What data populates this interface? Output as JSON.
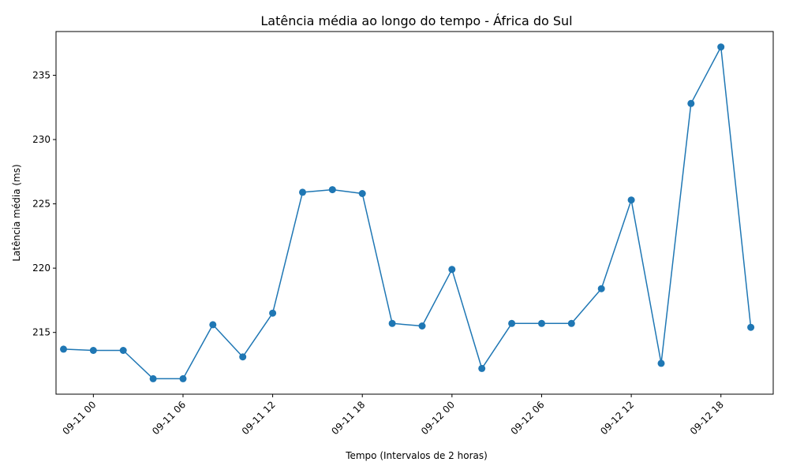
{
  "chart_data": {
    "type": "line",
    "title": "Latência média ao longo do tempo - África do Sul",
    "xlabel": "Tempo (Intervalos de 2 horas)",
    "ylabel": "Latência média (ms)",
    "x_ticks": [
      "09-11 00",
      "09-11 06",
      "09-11 12",
      "09-11 18",
      "09-12 00",
      "09-12 06",
      "09-12 12",
      "09-12 18"
    ],
    "y_ticks": [
      215,
      220,
      225,
      230,
      235
    ],
    "xlim": [
      "2024-09-10 21:30",
      "2024-09-12 21:30"
    ],
    "ylim": [
      210.2,
      238.4
    ],
    "grid": false,
    "series_color": "#1f77b4",
    "x": [
      "2024-09-10 22:00",
      "2024-09-11 00:00",
      "2024-09-11 02:00",
      "2024-09-11 04:00",
      "2024-09-11 06:00",
      "2024-09-11 08:00",
      "2024-09-11 10:00",
      "2024-09-11 12:00",
      "2024-09-11 14:00",
      "2024-09-11 16:00",
      "2024-09-11 18:00",
      "2024-09-11 20:00",
      "2024-09-11 22:00",
      "2024-09-12 00:00",
      "2024-09-12 02:00",
      "2024-09-12 04:00",
      "2024-09-12 06:00",
      "2024-09-12 08:00",
      "2024-09-12 10:00",
      "2024-09-12 12:00",
      "2024-09-12 14:00",
      "2024-09-12 16:00",
      "2024-09-12 18:00",
      "2024-09-12 20:00"
    ],
    "y": [
      213.7,
      213.6,
      213.6,
      211.4,
      211.4,
      215.6,
      213.1,
      216.5,
      225.9,
      226.1,
      225.8,
      215.7,
      215.5,
      219.9,
      212.2,
      215.7,
      215.7,
      215.7,
      218.4,
      225.3,
      212.6,
      232.8,
      237.2,
      215.4
    ]
  }
}
